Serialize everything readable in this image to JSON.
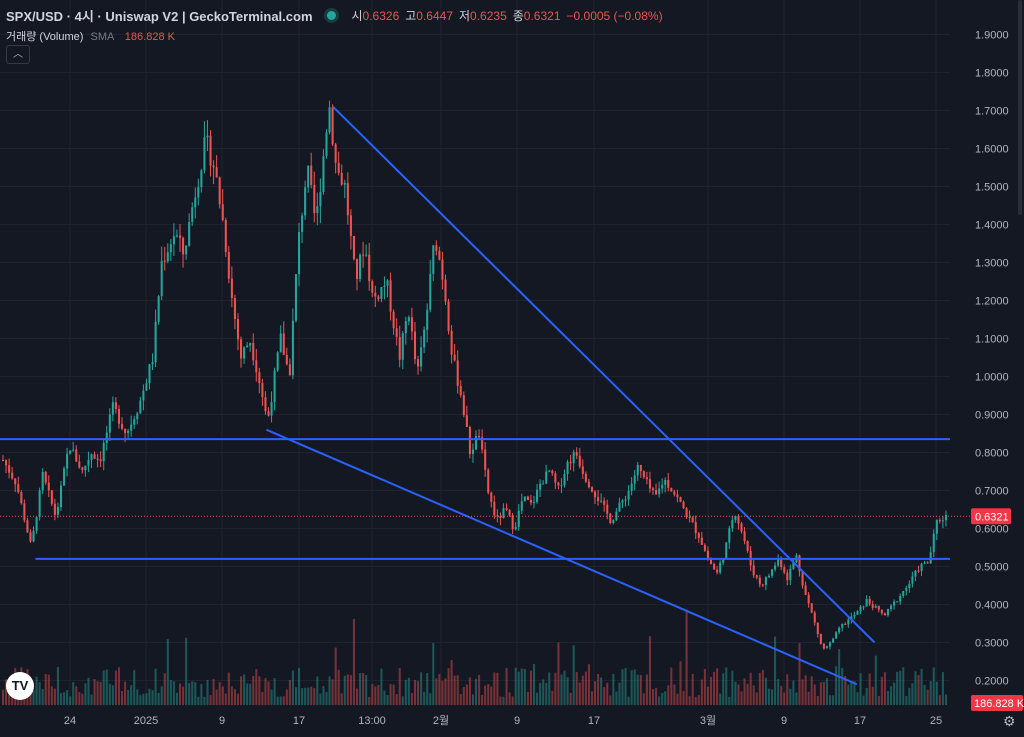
{
  "header": {
    "title": "SPX/USD · 4시 · Uniswap V2 | GeckoTerminal.com",
    "open_label": "시",
    "open": "0.6326",
    "high_label": "고",
    "high": "0.6447",
    "low_label": "저",
    "low": "0.6235",
    "close_label": "종",
    "close": "0.6321",
    "change": "−0.0005 (−0.08%)"
  },
  "volume_legend": {
    "label": "거래량 (Volume)",
    "sma": "SMA",
    "value": "186.828 K"
  },
  "icons": {
    "collapse": "chevron-up-icon",
    "logo": "tradingview-logo-icon",
    "settings": "gear-icon"
  },
  "chart_data": {
    "type": "candlestick",
    "ylim": [
      0.1575,
      1.9275
    ],
    "y_ticks": [
      "1.9000",
      "1.8000",
      "1.7000",
      "1.6000",
      "1.5000",
      "1.4000",
      "1.3000",
      "1.2000",
      "1.1000",
      "1.0000",
      "0.9000",
      "0.8000",
      "0.7000",
      "0.6000",
      "0.5000",
      "0.4000",
      "0.3000",
      "0.2000"
    ],
    "x_ticks": [
      "24",
      "2025",
      "9",
      "17",
      "13:00",
      "2월",
      "9",
      "17",
      "3월",
      "9",
      "17",
      "25"
    ],
    "last_price": "0.6321",
    "last_volume": "186.828 K",
    "price_path": [
      [
        0,
        0.78
      ],
      [
        1.5,
        0.72
      ],
      [
        3.2,
        0.55
      ],
      [
        4.5,
        0.74
      ],
      [
        6,
        0.63
      ],
      [
        7.5,
        0.82
      ],
      [
        9,
        0.75
      ],
      [
        10,
        0.8
      ],
      [
        11,
        0.78
      ],
      [
        12.5,
        0.92
      ],
      [
        14,
        0.85
      ],
      [
        15.5,
        0.93
      ],
      [
        17,
        1.05
      ],
      [
        18,
        1.3
      ],
      [
        19.5,
        1.38
      ],
      [
        20.5,
        1.32
      ],
      [
        21.5,
        1.45
      ],
      [
        23,
        1.62
      ],
      [
        24,
        1.55
      ],
      [
        25,
        1.4
      ],
      [
        26,
        1.2
      ],
      [
        27,
        1.05
      ],
      [
        28,
        1.1
      ],
      [
        29,
        1.0
      ],
      [
        30,
        0.88
      ],
      [
        31.5,
        1.1
      ],
      [
        32.5,
        1.0
      ],
      [
        33.5,
        1.35
      ],
      [
        34.5,
        1.55
      ],
      [
        35.5,
        1.4
      ],
      [
        37,
        1.72
      ],
      [
        37.8,
        1.55
      ],
      [
        38.8,
        1.5
      ],
      [
        40,
        1.25
      ],
      [
        41,
        1.35
      ],
      [
        42,
        1.2
      ],
      [
        43.5,
        1.25
      ],
      [
        45,
        1.05
      ],
      [
        46,
        1.18
      ],
      [
        47,
        1.0
      ],
      [
        48,
        1.15
      ],
      [
        49,
        1.37
      ],
      [
        50,
        1.25
      ],
      [
        51,
        1.05
      ],
      [
        52,
        0.95
      ],
      [
        53,
        0.8
      ],
      [
        54,
        0.85
      ],
      [
        55,
        0.7
      ],
      [
        56,
        0.62
      ],
      [
        57,
        0.65
      ],
      [
        58,
        0.6
      ],
      [
        59,
        0.68
      ],
      [
        60,
        0.66
      ],
      [
        61,
        0.72
      ],
      [
        62,
        0.75
      ],
      [
        63,
        0.7
      ],
      [
        64,
        0.77
      ],
      [
        65,
        0.8
      ],
      [
        66,
        0.74
      ],
      [
        67,
        0.7
      ],
      [
        68,
        0.66
      ],
      [
        69,
        0.62
      ],
      [
        70,
        0.66
      ],
      [
        71,
        0.7
      ],
      [
        72,
        0.76
      ],
      [
        73,
        0.72
      ],
      [
        74,
        0.68
      ],
      [
        75,
        0.73
      ],
      [
        76,
        0.7
      ],
      [
        77,
        0.66
      ],
      [
        78,
        0.62
      ],
      [
        79,
        0.58
      ],
      [
        80,
        0.52
      ],
      [
        81,
        0.48
      ],
      [
        82,
        0.55
      ],
      [
        83,
        0.65
      ],
      [
        84,
        0.58
      ],
      [
        85,
        0.49
      ],
      [
        86,
        0.45
      ],
      [
        87,
        0.48
      ],
      [
        88,
        0.52
      ],
      [
        89,
        0.47
      ],
      [
        90,
        0.53
      ],
      [
        91,
        0.43
      ],
      [
        92,
        0.36
      ],
      [
        93,
        0.28
      ],
      [
        94,
        0.3
      ],
      [
        95,
        0.34
      ],
      [
        96,
        0.36
      ],
      [
        97,
        0.38
      ],
      [
        98,
        0.41
      ],
      [
        99,
        0.39
      ],
      [
        100,
        0.37
      ],
      [
        101,
        0.4
      ],
      [
        102,
        0.43
      ],
      [
        103,
        0.46
      ],
      [
        104,
        0.5
      ],
      [
        105,
        0.51
      ],
      [
        106,
        0.62
      ],
      [
        107,
        0.6321
      ]
    ],
    "trendlines": [
      {
        "t1": 0.0,
        "p1": 0.835,
        "t2": 107.0,
        "p2": 0.835
      },
      {
        "t1": 4.0,
        "p1": 0.52,
        "t2": 107.0,
        "p2": 0.52
      },
      {
        "t1": 30.0,
        "p1": 0.86,
        "t2": 96.5,
        "p2": 0.19
      },
      {
        "t1": 37.5,
        "p1": 1.71,
        "t2": 98.5,
        "p2": 0.3
      }
    ]
  }
}
